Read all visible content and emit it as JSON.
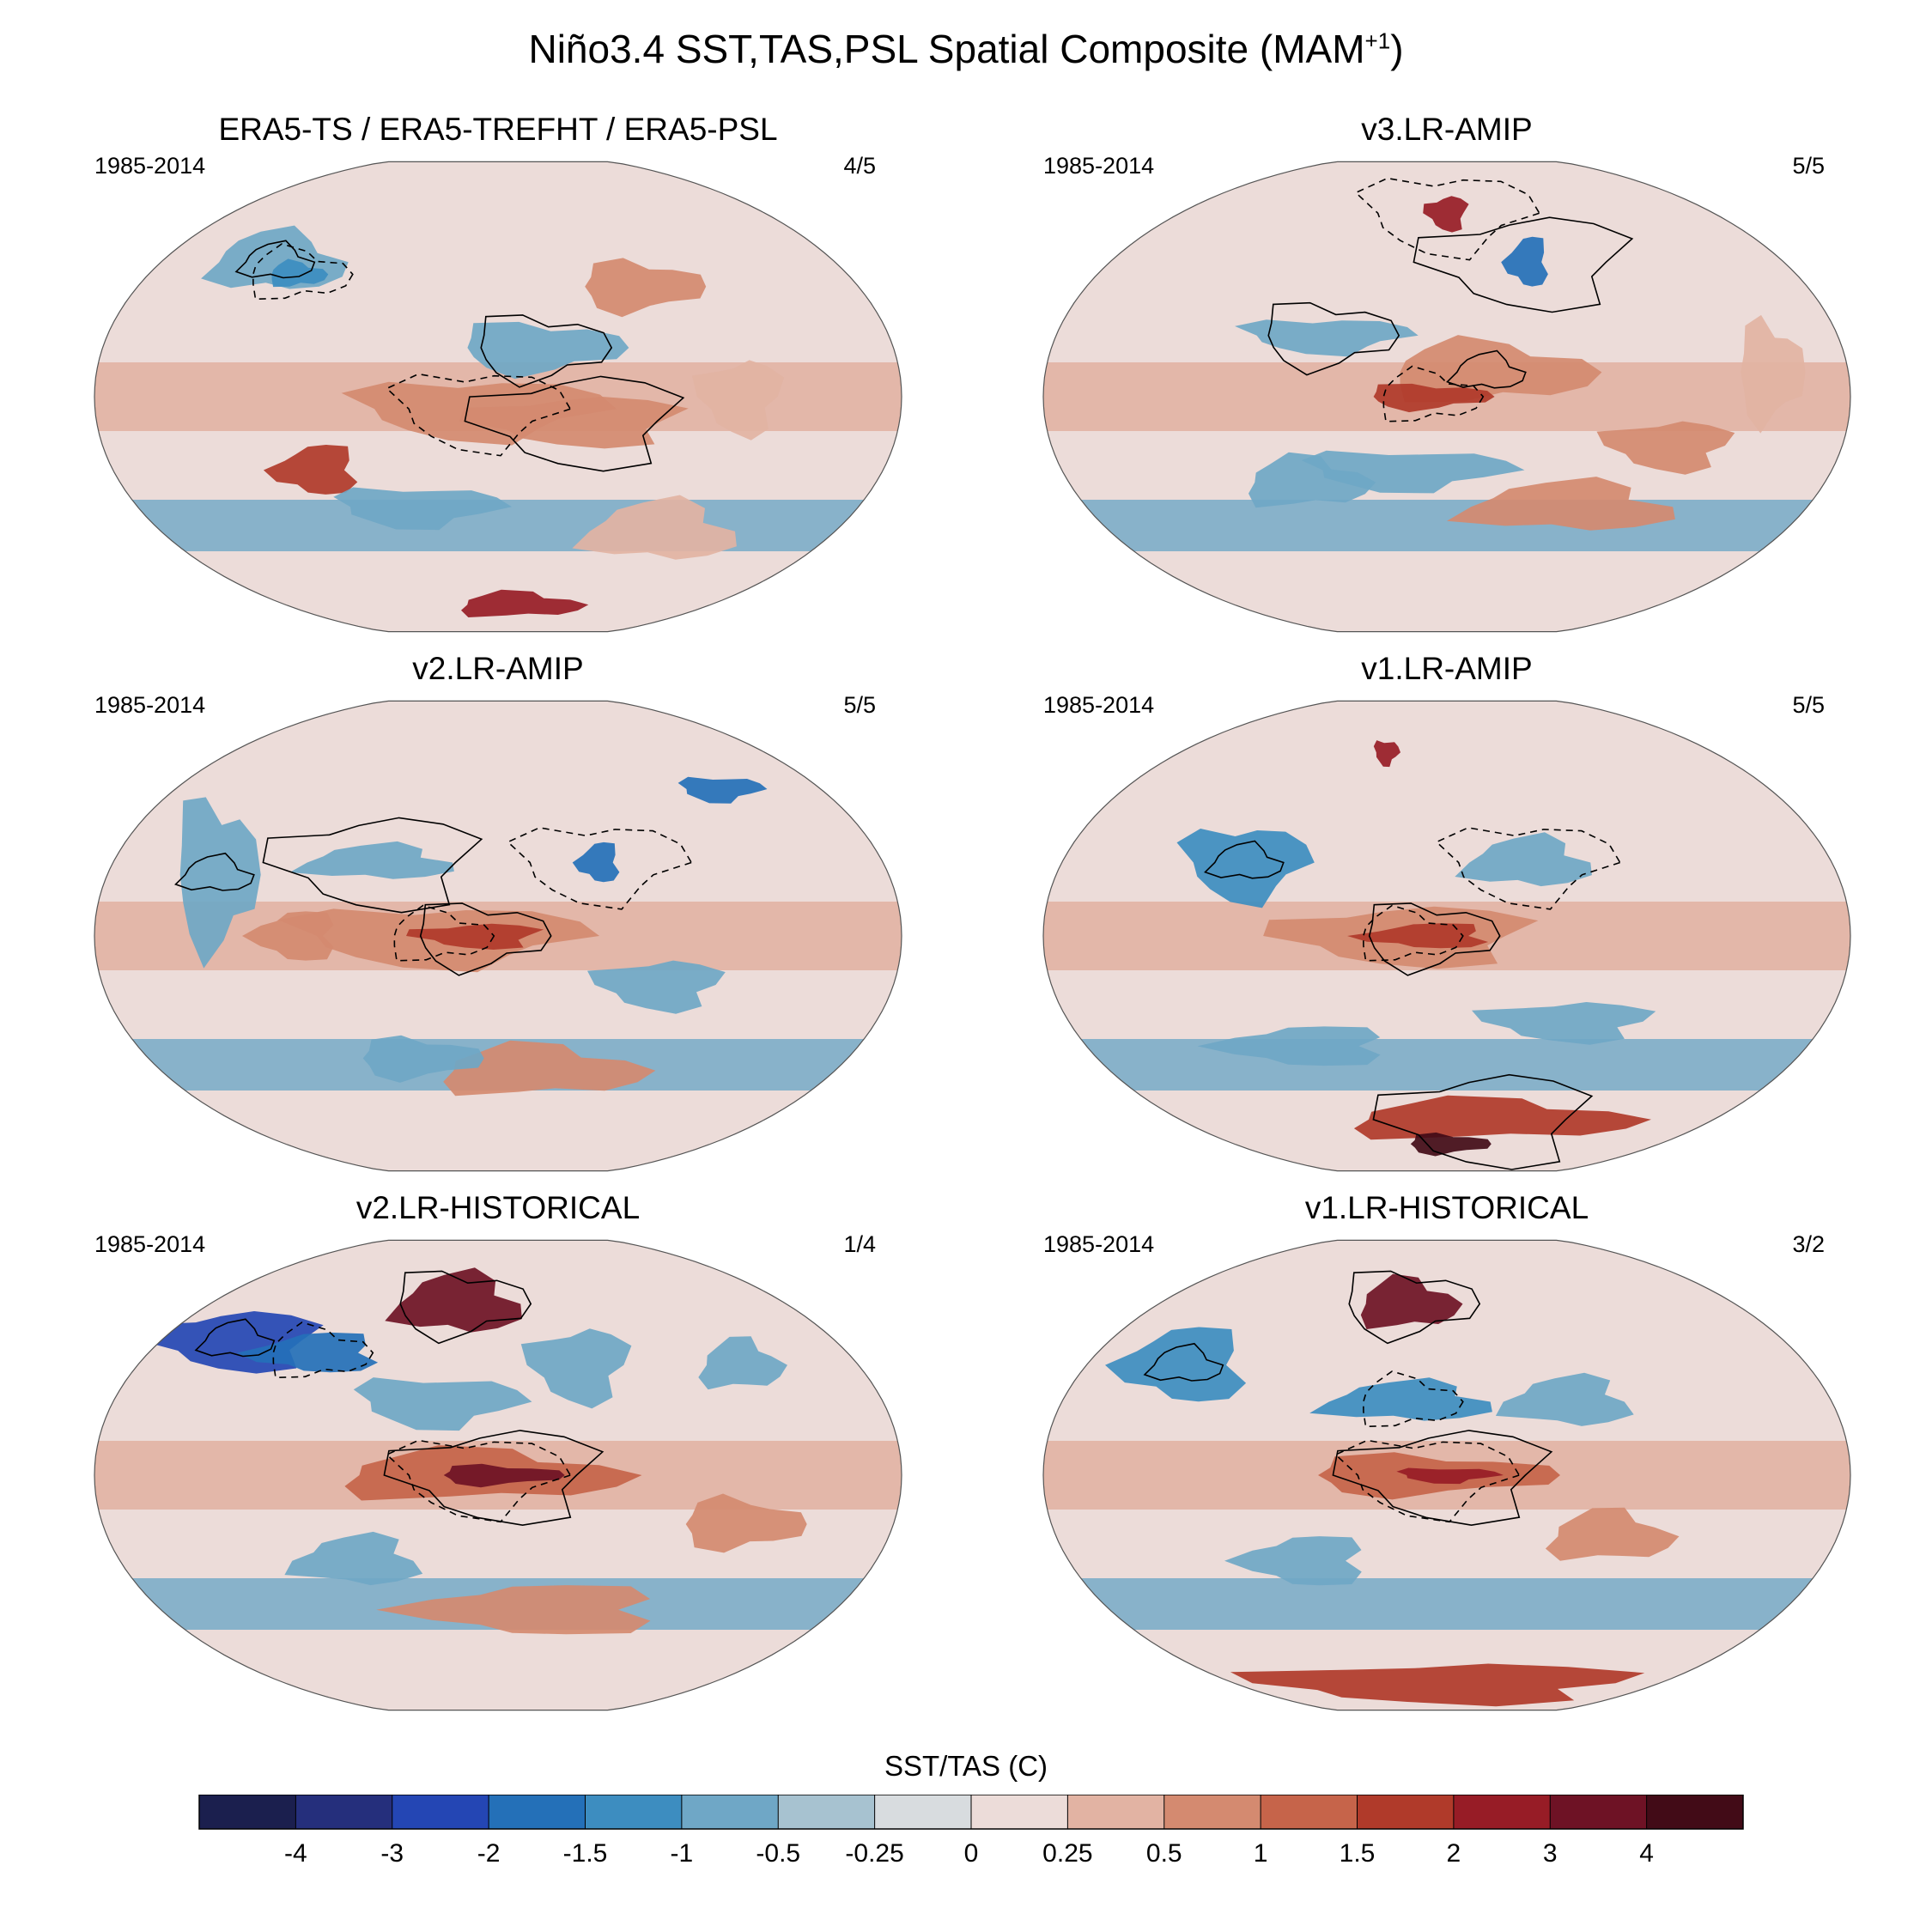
{
  "title": "Niño3.4 SST,TAS,PSL Spatial Composite (MAM",
  "title_sup": "+1",
  "title_end": ")",
  "panels": [
    {
      "title": "ERA5-TS / ERA5-TREFHT / ERA5-PSL",
      "period": "1985-2014",
      "pattern": "4/5"
    },
    {
      "title": "v3.LR-AMIP",
      "period": "1985-2014",
      "pattern": "5/5"
    },
    {
      "title": "v2.LR-AMIP",
      "period": "1985-2014",
      "pattern": "5/5"
    },
    {
      "title": "v1.LR-AMIP",
      "period": "1985-2014",
      "pattern": "5/5"
    },
    {
      "title": "v2.LR-HISTORICAL",
      "period": "1985-2014",
      "pattern": "1/4"
    },
    {
      "title": "v1.LR-HISTORICAL",
      "period": "1985-2014",
      "pattern": "3/2"
    }
  ],
  "colorbar": {
    "title": "SST/TAS (C)",
    "labels": [
      "-4",
      "-3",
      "-2",
      "-1.5",
      "-1",
      "-0.5",
      "-0.25",
      "0",
      "0.25",
      "0.5",
      "1",
      "1.5",
      "2",
      "3",
      "4"
    ],
    "colors": [
      "#1b1f4e",
      "#252f7c",
      "#2446b4",
      "#2470b8",
      "#3d8dc0",
      "#6fa7c6",
      "#a7c2d0",
      "#d8dcdf",
      "#ecdcd9",
      "#e2b3a3",
      "#d48a70",
      "#c6644a",
      "#b03a2a",
      "#971c26",
      "#6e1225",
      "#420b17"
    ]
  }
}
